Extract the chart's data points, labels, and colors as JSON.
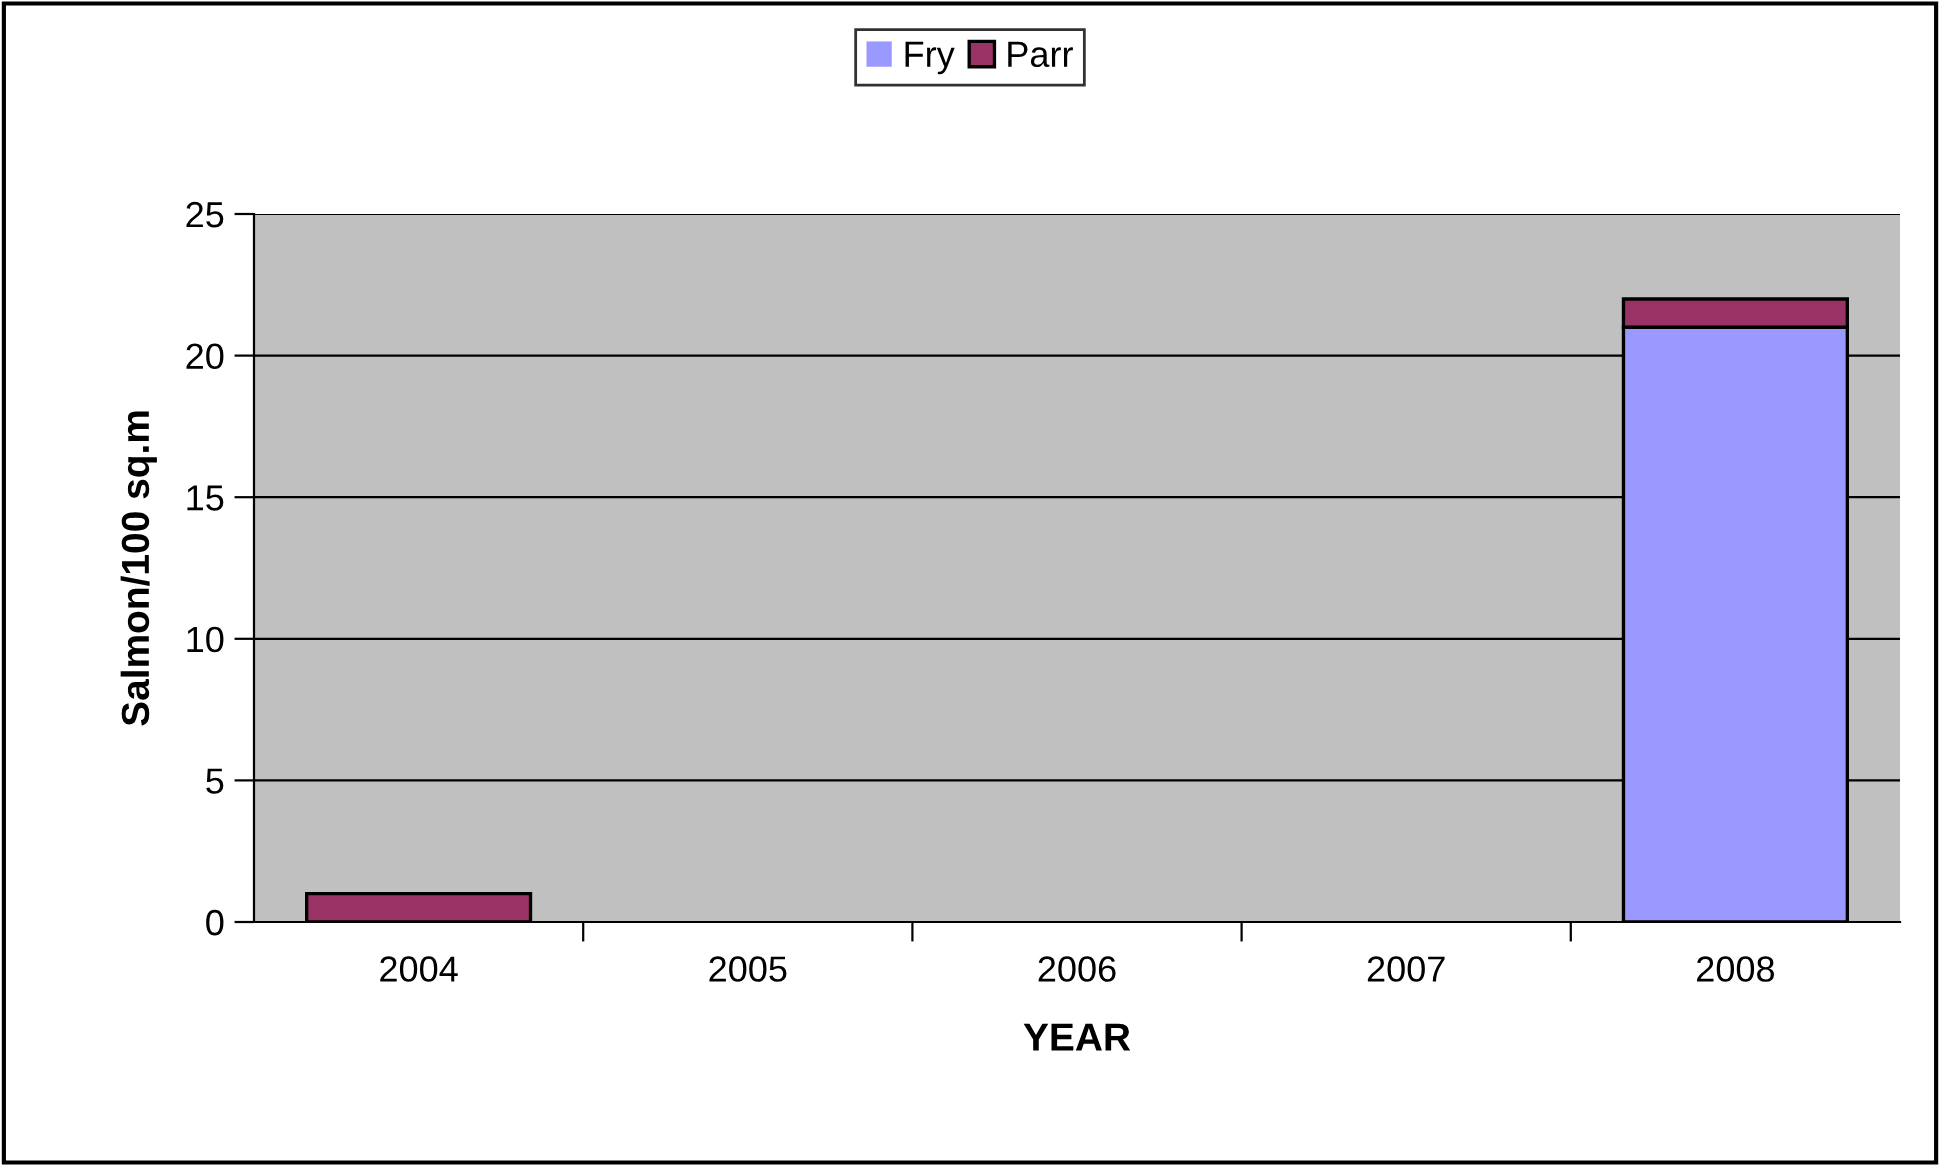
{
  "chart_data": {
    "type": "bar",
    "stacked": true,
    "xlabel": "YEAR",
    "ylabel": "Salmon/100 sq.m",
    "categories": [
      "2004",
      "2005",
      "2006",
      "2007",
      "2008"
    ],
    "series": [
      {
        "name": "Fry",
        "color": "#9999ff",
        "values": [
          0,
          0,
          0,
          0,
          21
        ]
      },
      {
        "name": "Parr",
        "color": "#993366",
        "values": [
          1,
          0,
          0,
          0,
          1
        ]
      }
    ],
    "ylim": [
      0,
      25
    ],
    "yticks": [
      0,
      5,
      10,
      15,
      20,
      25
    ],
    "grid": "y",
    "legend": "top"
  }
}
